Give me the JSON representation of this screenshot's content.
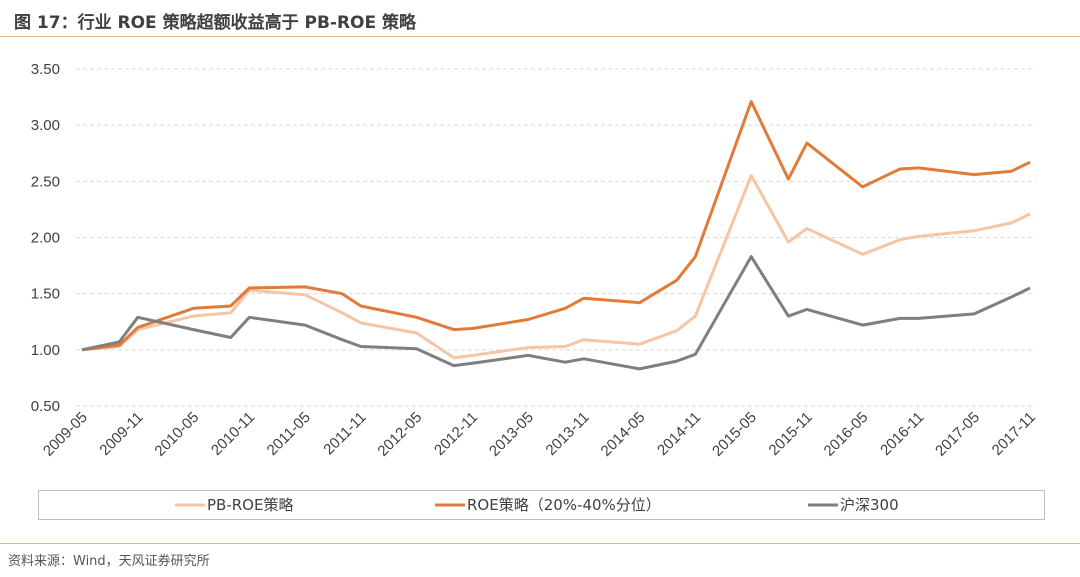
{
  "title": "图 17：行业 ROE 策略超额收益高于 PB-ROE 策略",
  "source": "资料来源：Wind，天风证券研究所",
  "chart_data": {
    "type": "line",
    "title": "",
    "xlabel": "",
    "ylabel": "",
    "ylim": [
      0.5,
      3.5
    ],
    "yticks": [
      "0.50",
      "1.00",
      "1.50",
      "2.00",
      "2.50",
      "3.00",
      "3.50"
    ],
    "xticks": [
      "2009-05",
      "2009-11",
      "2010-05",
      "2010-11",
      "2011-05",
      "2011-11",
      "2012-05",
      "2012-11",
      "2013-05",
      "2013-11",
      "2014-05",
      "2014-11",
      "2015-05",
      "2015-11",
      "2016-05",
      "2016-11",
      "2017-05",
      "2017-11"
    ],
    "grid": "horizontal dashed",
    "legend_position": "bottom",
    "x": [
      "2009-05",
      "2009-09",
      "2009-11",
      "2010-05",
      "2010-09",
      "2010-11",
      "2011-05",
      "2011-09",
      "2011-11",
      "2012-05",
      "2012-09",
      "2012-11",
      "2013-05",
      "2013-09",
      "2013-11",
      "2014-05",
      "2014-09",
      "2014-11",
      "2015-05",
      "2015-09",
      "2015-11",
      "2016-05",
      "2016-09",
      "2016-11",
      "2017-05",
      "2017-09",
      "2017-11"
    ],
    "series": [
      {
        "name": "PB-ROE策略",
        "color": "#F4C6A6",
        "values": [
          1.0,
          1.03,
          1.18,
          1.3,
          1.33,
          1.53,
          1.49,
          1.33,
          1.24,
          1.15,
          0.93,
          0.95,
          1.02,
          1.03,
          1.09,
          1.05,
          1.17,
          1.3,
          2.55,
          1.96,
          2.08,
          1.85,
          1.98,
          2.01,
          2.06,
          2.13,
          2.21
        ]
      },
      {
        "name": "ROE策略（20%-40%分位）",
        "color": "#E07B39",
        "values": [
          1.0,
          1.04,
          1.2,
          1.37,
          1.39,
          1.55,
          1.56,
          1.5,
          1.39,
          1.29,
          1.18,
          1.19,
          1.27,
          1.37,
          1.46,
          1.42,
          1.62,
          1.83,
          3.21,
          2.52,
          2.84,
          2.45,
          2.61,
          2.62,
          2.56,
          2.59,
          2.67
        ]
      },
      {
        "name": "沪深300",
        "color": "#7F7F7F",
        "values": [
          1.0,
          1.07,
          1.29,
          1.18,
          1.11,
          1.29,
          1.22,
          1.09,
          1.03,
          1.01,
          0.86,
          0.88,
          0.95,
          0.89,
          0.92,
          0.83,
          0.9,
          0.96,
          1.83,
          1.3,
          1.36,
          1.22,
          1.28,
          1.28,
          1.32,
          1.47,
          1.55
        ]
      }
    ]
  }
}
